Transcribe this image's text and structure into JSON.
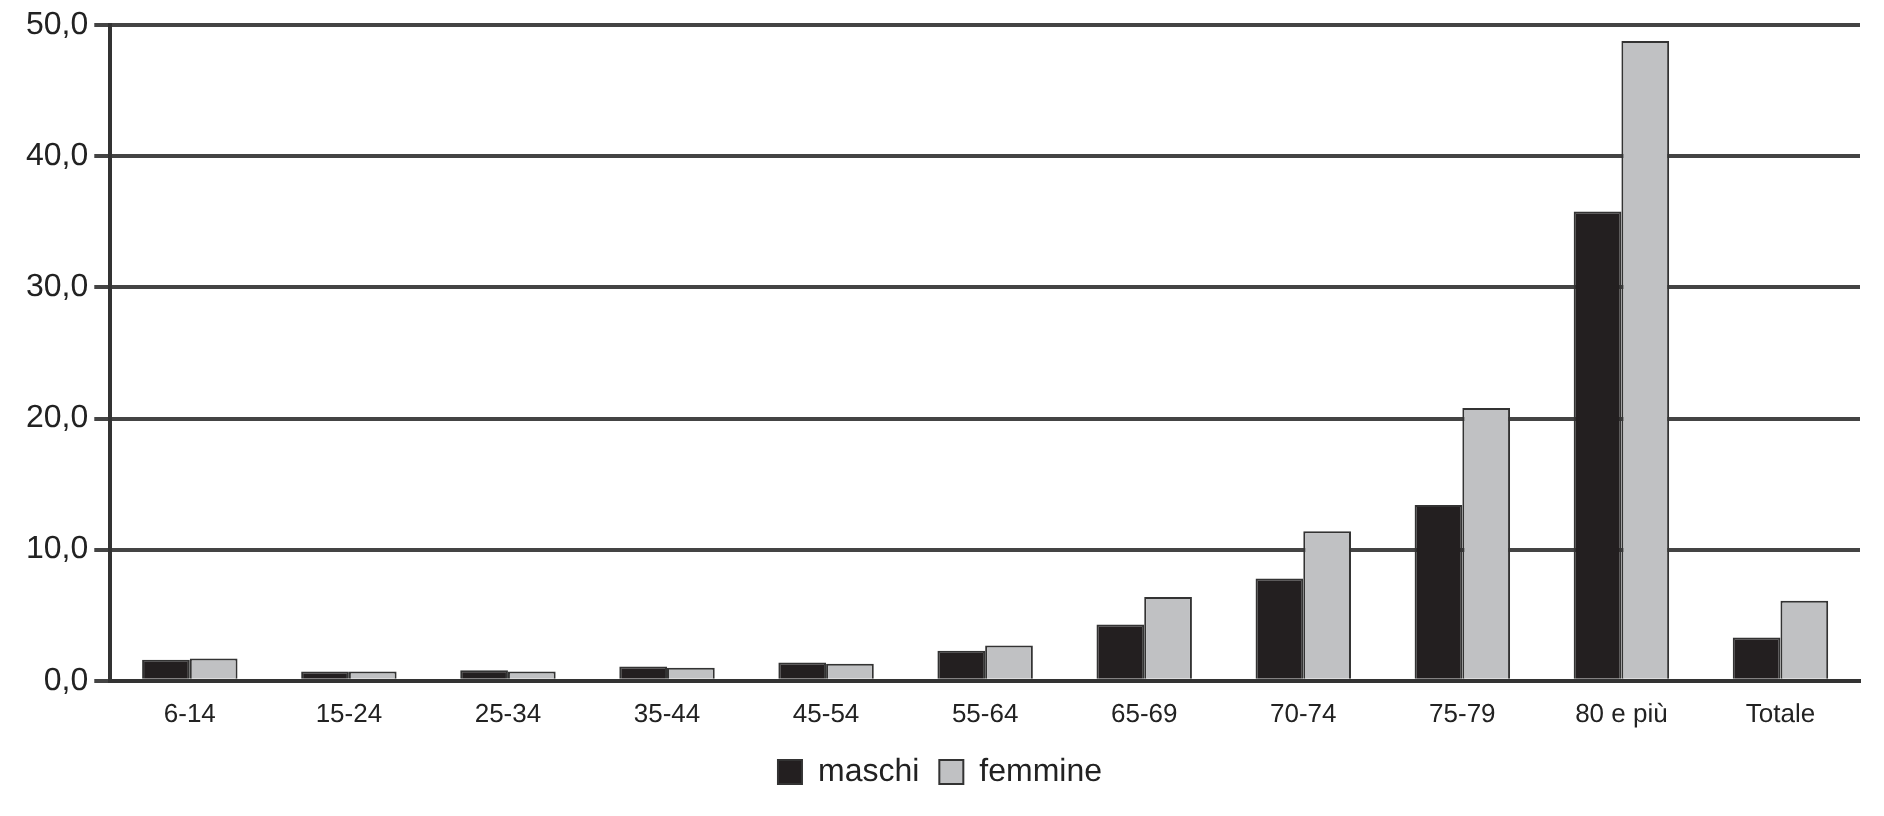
{
  "chart_data": {
    "type": "bar",
    "categories": [
      "6-14",
      "15-24",
      "25-34",
      "35-44",
      "45-54",
      "55-64",
      "65-69",
      "70-74",
      "75-79",
      "80 e più",
      "Totale"
    ],
    "series": [
      {
        "name": "maschi",
        "color": "#231f20",
        "values": [
          1.6,
          0.7,
          0.8,
          1.1,
          1.4,
          2.3,
          4.3,
          7.8,
          13.4,
          35.8,
          3.3
        ]
      },
      {
        "name": "femmine",
        "color": "#c0c1c3",
        "values": [
          1.7,
          0.7,
          0.7,
          1.0,
          1.3,
          2.7,
          6.4,
          11.4,
          20.8,
          48.8,
          6.1
        ]
      }
    ],
    "ylim": [
      0,
      50
    ],
    "yticks": [
      {
        "value": 0,
        "label": "0,0"
      },
      {
        "value": 10,
        "label": "10,0"
      },
      {
        "value": 20,
        "label": "20,0"
      },
      {
        "value": 30,
        "label": "30,0"
      },
      {
        "value": 40,
        "label": "40,0"
      },
      {
        "value": 50,
        "label": "50,0"
      }
    ],
    "grid": "y",
    "legend": "bottom"
  }
}
